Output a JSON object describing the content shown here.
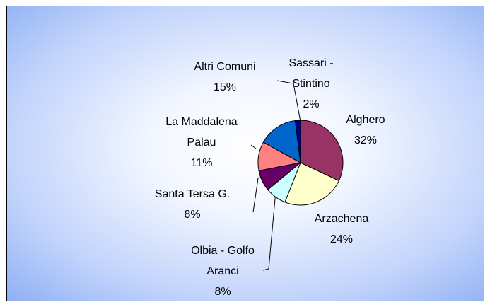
{
  "chart_data": {
    "type": "pie",
    "categories": [
      "Alghero",
      "Arzachena",
      "Olbia - Golfo Aranci",
      "Santa Tersa G.",
      "La Maddalena Palau",
      "Altri Comuni",
      "Sassari - Stintino"
    ],
    "values": [
      32,
      24,
      8,
      8,
      11,
      15,
      2
    ],
    "value_labels": [
      "32%",
      "24%",
      "8%",
      "8%",
      "11%",
      "15%",
      "2%"
    ],
    "colors": [
      "#993366",
      "#ffffcc",
      "#ccffff",
      "#660066",
      "#ff8080",
      "#0066cc",
      "#000080"
    ]
  }
}
